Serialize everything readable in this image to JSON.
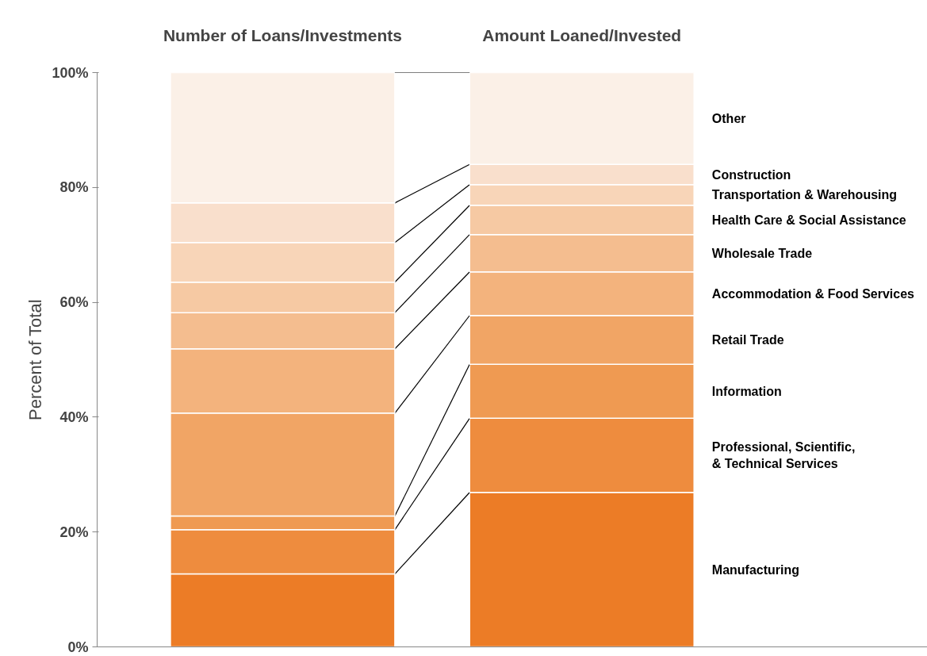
{
  "chart_data": {
    "type": "bar",
    "stacked": true,
    "ylabel": "Percent of Total",
    "categories": [
      "Number of Loans/Investments",
      "Amount Loaned/Invested"
    ],
    "ylim": [
      0,
      100
    ],
    "yticks": [
      {
        "value": 0,
        "label": "0%"
      },
      {
        "value": 20,
        "label": "20%"
      },
      {
        "value": 40,
        "label": "40%"
      },
      {
        "value": 60,
        "label": "60%"
      },
      {
        "value": 80,
        "label": "80%"
      },
      {
        "value": 100,
        "label": "100%"
      }
    ],
    "grid": false,
    "legend": false,
    "series": [
      {
        "name": "Manufacturing",
        "color": "#ec7c26",
        "values": [
          12.7,
          26.9
        ]
      },
      {
        "name": "Professional, Scientific,\n& Technical Services",
        "color": "#ee8c3e",
        "values": [
          7.7,
          12.9
        ]
      },
      {
        "name": "Information",
        "color": "#ef9a52",
        "values": [
          2.4,
          9.4
        ]
      },
      {
        "name": "Retail Trade",
        "color": "#f1a565",
        "values": [
          17.9,
          8.5
        ]
      },
      {
        "name": "Accommodation & Food Services",
        "color": "#f3b37d",
        "values": [
          11.2,
          7.6
        ]
      },
      {
        "name": "Wholesale Trade",
        "color": "#f4bd8f",
        "values": [
          6.3,
          6.5
        ]
      },
      {
        "name": "Health Care & Social Assistance",
        "color": "#f6c9a3",
        "values": [
          5.3,
          5.1
        ]
      },
      {
        "name": "Transportation & Warehousing",
        "color": "#f8d5b8",
        "values": [
          6.9,
          3.6
        ]
      },
      {
        "name": "Construction",
        "color": "#f9dfcc",
        "values": [
          6.9,
          3.5
        ]
      },
      {
        "name": "Other",
        "color": "#fbf0e7",
        "values": [
          22.7,
          16.0
        ]
      }
    ]
  }
}
